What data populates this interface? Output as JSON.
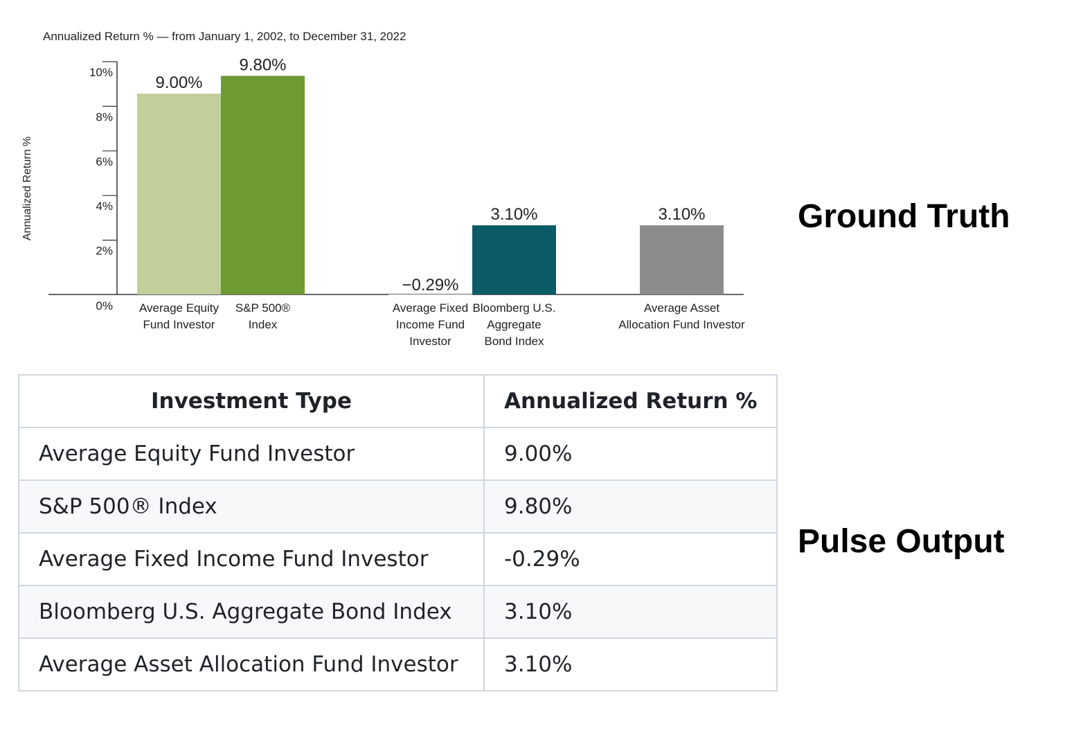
{
  "chart_data": {
    "type": "bar",
    "title": "Annualized Return % — from January 1, 2002, to December 31, 2022",
    "ylabel": "Annualized Return %",
    "xlabel": "",
    "ylim": [
      0,
      10
    ],
    "yticks": [
      "0%",
      "2%",
      "4%",
      "6%",
      "8%",
      "10%"
    ],
    "grid": false,
    "categories": [
      [
        "Average Equity",
        "Fund Investor"
      ],
      [
        "S&P 500®",
        "Index"
      ],
      [
        "Average Fixed",
        "Income Fund",
        "Investor"
      ],
      [
        "Bloomberg U.S.",
        "Aggregate",
        "Bond Index"
      ],
      [
        "Average Asset",
        "Allocation Fund Investor"
      ]
    ],
    "values": [
      9.0,
      9.8,
      -0.29,
      3.1,
      3.1
    ],
    "value_labels": [
      "9.00%",
      "9.80%",
      "−0.29%",
      "3.10%",
      "3.10%"
    ],
    "colors": [
      "#c0cf9b",
      "#6f9a33",
      "#ffffff",
      "#0b5c66",
      "#8c8c8c"
    ]
  },
  "labels": {
    "ground_truth": "Ground Truth",
    "pulse_output": "Pulse Output"
  },
  "table": {
    "headers": [
      "Investment Type",
      "Annualized Return %"
    ],
    "rows": [
      [
        "Average Equity Fund Investor",
        "9.00%"
      ],
      [
        "S&P 500® Index",
        "9.80%"
      ],
      [
        "Average Fixed Income Fund Investor",
        "-0.29%"
      ],
      [
        "Bloomberg U.S. Aggregate Bond Index",
        "3.10%"
      ],
      [
        "Average Asset Allocation Fund Investor",
        "3.10%"
      ]
    ]
  }
}
